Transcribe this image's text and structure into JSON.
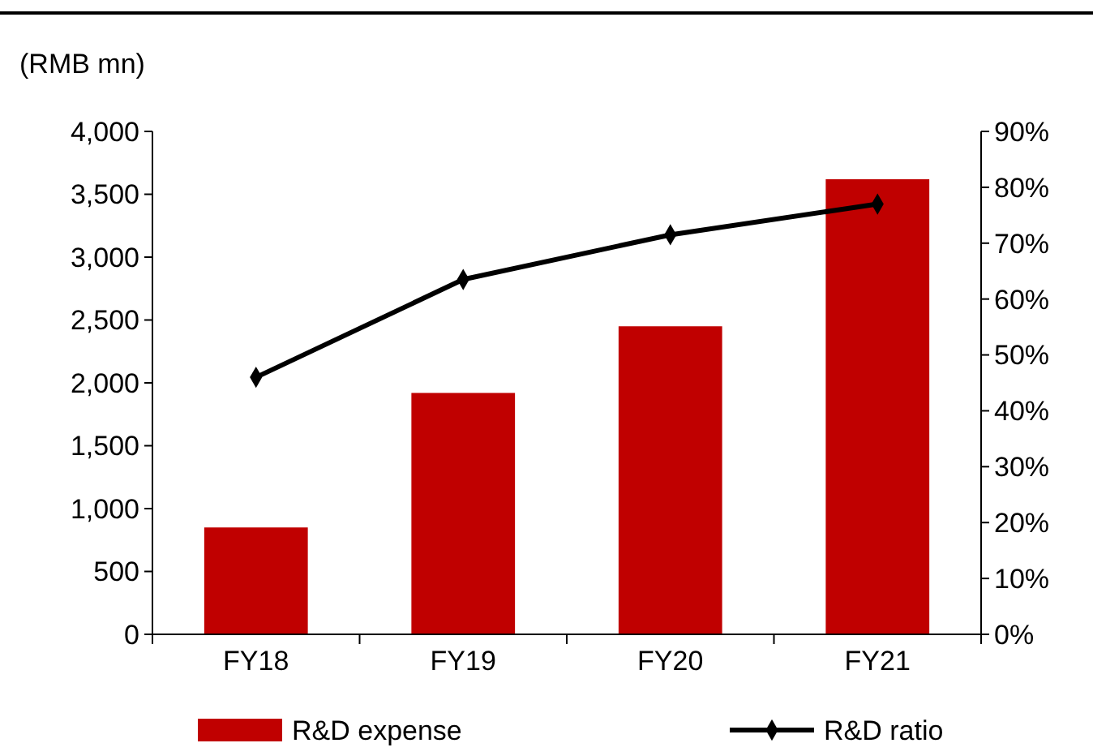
{
  "chart_data": {
    "type": "bar",
    "ylabel": "(RMB mn)",
    "categories": [
      "FY18",
      "FY19",
      "FY20",
      "FY21"
    ],
    "series": [
      {
        "name": "R&D expense",
        "color": "#c00000",
        "values": [
          850,
          1920,
          2450,
          3620
        ]
      },
      {
        "name": "R&D ratio",
        "type": "line",
        "axis": "y2",
        "color": "#000000",
        "marker": "diamond",
        "values": [
          46,
          63.5,
          71.5,
          77
        ]
      }
    ],
    "ylim": [
      0,
      4000
    ],
    "yticks": [
      {
        "value": 0,
        "label": "0"
      },
      {
        "value": 500,
        "label": "500"
      },
      {
        "value": 1000,
        "label": "1,000"
      },
      {
        "value": 1500,
        "label": "1,500"
      },
      {
        "value": 2000,
        "label": "2,000"
      },
      {
        "value": 2500,
        "label": "2,500"
      },
      {
        "value": 3000,
        "label": "3,000"
      },
      {
        "value": 3500,
        "label": "3,500"
      },
      {
        "value": 4000,
        "label": "4,000"
      }
    ],
    "y2lim": [
      0,
      90
    ],
    "y2ticks": [
      {
        "value": 0,
        "label": "0%"
      },
      {
        "value": 10,
        "label": "10%"
      },
      {
        "value": 20,
        "label": "20%"
      },
      {
        "value": 30,
        "label": "30%"
      },
      {
        "value": 40,
        "label": "40%"
      },
      {
        "value": 50,
        "label": "50%"
      },
      {
        "value": 60,
        "label": "60%"
      },
      {
        "value": 70,
        "label": "70%"
      },
      {
        "value": 80,
        "label": "80%"
      },
      {
        "value": 90,
        "label": "90%"
      }
    ],
    "grid": false,
    "legend": "bottom"
  }
}
